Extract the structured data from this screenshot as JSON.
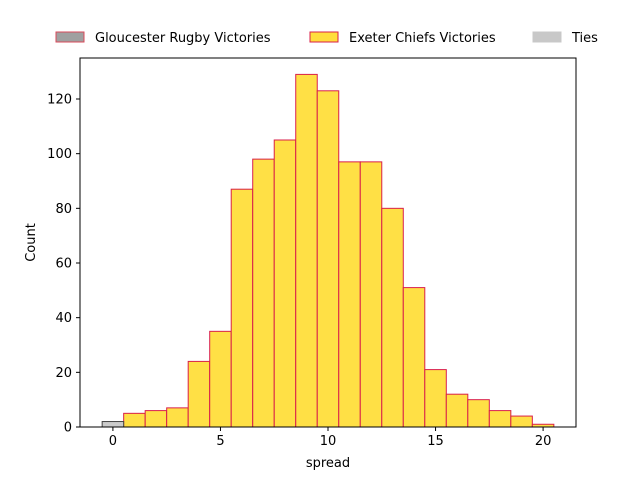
{
  "chart_data": {
    "type": "bar",
    "title": "",
    "xlabel": "spread",
    "ylabel": "Count",
    "xlim": [
      -1.53,
      21.53
    ],
    "ylim": [
      0,
      135
    ],
    "xticks": [
      0,
      5,
      10,
      15,
      20
    ],
    "yticks": [
      0,
      20,
      40,
      60,
      80,
      100,
      120
    ],
    "legend_position": "top",
    "grid": false,
    "series": [
      {
        "name": "Gloucester Rugby Victories",
        "fill": "#a0a0a0",
        "edge": "#d94a5a",
        "bins": []
      },
      {
        "name": "Exeter Chiefs Victories",
        "fill": "#ffde3b",
        "edge": "#d91f4a",
        "bins": [
          {
            "x0": 0.5,
            "x1": 1.5,
            "count": 5
          },
          {
            "x0": 1.5,
            "x1": 2.5,
            "count": 6
          },
          {
            "x0": 2.5,
            "x1": 3.5,
            "count": 7
          },
          {
            "x0": 3.5,
            "x1": 4.5,
            "count": 24
          },
          {
            "x0": 4.5,
            "x1": 5.5,
            "count": 35
          },
          {
            "x0": 5.5,
            "x1": 6.5,
            "count": 87
          },
          {
            "x0": 6.5,
            "x1": 7.5,
            "count": 98
          },
          {
            "x0": 7.5,
            "x1": 8.5,
            "count": 105
          },
          {
            "x0": 8.5,
            "x1": 9.5,
            "count": 129
          },
          {
            "x0": 9.5,
            "x1": 10.5,
            "count": 123
          },
          {
            "x0": 10.5,
            "x1": 11.5,
            "count": 97
          },
          {
            "x0": 11.5,
            "x1": 12.5,
            "count": 97
          },
          {
            "x0": 12.5,
            "x1": 13.5,
            "count": 80
          },
          {
            "x0": 13.5,
            "x1": 14.5,
            "count": 51
          },
          {
            "x0": 14.5,
            "x1": 15.5,
            "count": 21
          },
          {
            "x0": 15.5,
            "x1": 16.5,
            "count": 12
          },
          {
            "x0": 16.5,
            "x1": 17.5,
            "count": 10
          },
          {
            "x0": 17.5,
            "x1": 18.5,
            "count": 6
          },
          {
            "x0": 18.5,
            "x1": 19.5,
            "count": 4
          },
          {
            "x0": 19.5,
            "x1": 20.5,
            "count": 1
          }
        ]
      },
      {
        "name": "Ties",
        "fill": "#c8c8c8",
        "edge": "#444444",
        "bins": [
          {
            "x0": -0.5,
            "x1": 0.5,
            "count": 2
          }
        ]
      }
    ]
  }
}
